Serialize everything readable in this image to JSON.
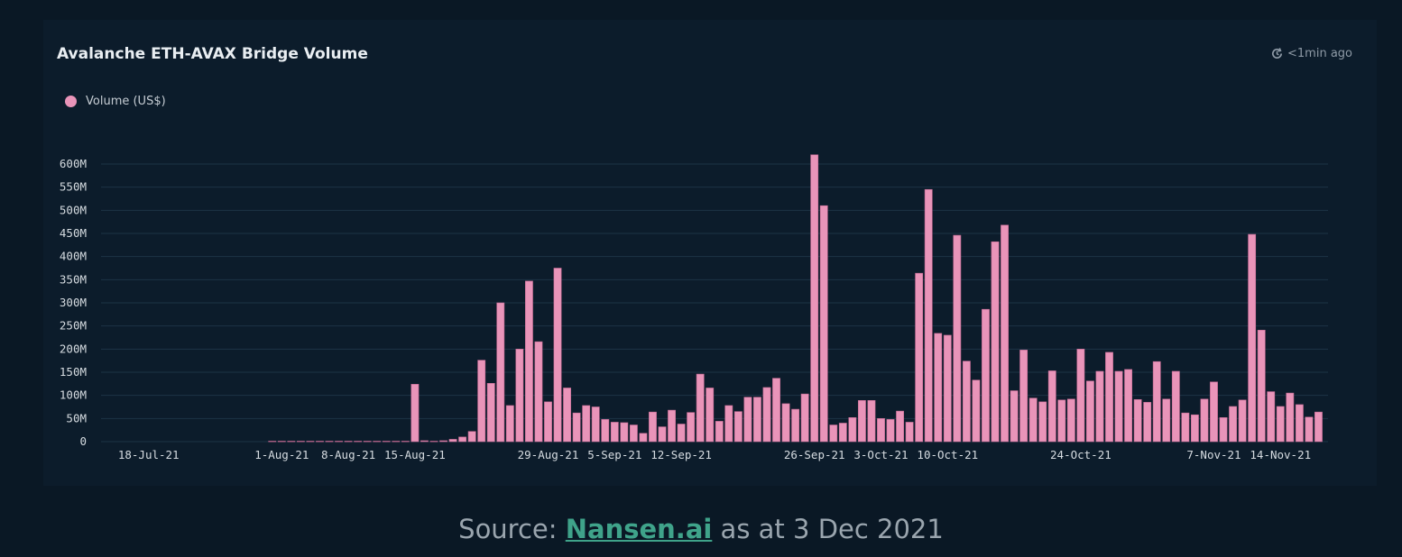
{
  "header": {
    "title": "Avalanche ETH-AVAX Bridge Volume",
    "refresh_text": "<1min ago"
  },
  "legend": {
    "label": "Volume (US$)"
  },
  "source": {
    "prefix": "Source: ",
    "link_text": "Nansen.ai",
    "suffix": " as at 3 Dec 2021"
  },
  "colors": {
    "bar": "#e994b9",
    "grid": "#1d3346",
    "axis_text": "#d6dce1"
  },
  "chart_data": {
    "type": "bar",
    "title": "Avalanche ETH-AVAX Bridge Volume",
    "xlabel": "",
    "ylabel": "",
    "series": [
      {
        "name": "Volume (US$)"
      }
    ],
    "ylim": [
      0,
      600000000
    ],
    "yticks": [
      {
        "value": 0,
        "label": "0"
      },
      {
        "value": 50000000,
        "label": "50M"
      },
      {
        "value": 100000000,
        "label": "100M"
      },
      {
        "value": 150000000,
        "label": "150M"
      },
      {
        "value": 200000000,
        "label": "200M"
      },
      {
        "value": 250000000,
        "label": "250M"
      },
      {
        "value": 300000000,
        "label": "300M"
      },
      {
        "value": 350000000,
        "label": "350M"
      },
      {
        "value": 400000000,
        "label": "400M"
      },
      {
        "value": 450000000,
        "label": "450M"
      },
      {
        "value": 500000000,
        "label": "500M"
      },
      {
        "value": 550000000,
        "label": "550M"
      },
      {
        "value": 600000000,
        "label": "600M"
      }
    ],
    "xticks": [
      {
        "date": "2021-07-18",
        "label": "18-Jul-21"
      },
      {
        "date": "2021-08-01",
        "label": "1-Aug-21"
      },
      {
        "date": "2021-08-08",
        "label": "8-Aug-21"
      },
      {
        "date": "2021-08-15",
        "label": "15-Aug-21"
      },
      {
        "date": "2021-08-29",
        "label": "29-Aug-21"
      },
      {
        "date": "2021-09-05",
        "label": "5-Sep-21"
      },
      {
        "date": "2021-09-12",
        "label": "12-Sep-21"
      },
      {
        "date": "2021-09-26",
        "label": "26-Sep-21"
      },
      {
        "date": "2021-10-03",
        "label": "3-Oct-21"
      },
      {
        "date": "2021-10-10",
        "label": "10-Oct-21"
      },
      {
        "date": "2021-10-24",
        "label": "24-Oct-21"
      },
      {
        "date": "2021-11-07",
        "label": "7-Nov-21"
      },
      {
        "date": "2021-11-14",
        "label": "14-Nov-21"
      }
    ],
    "x": [
      "2021-07-31",
      "2021-08-01",
      "2021-08-02",
      "2021-08-03",
      "2021-08-04",
      "2021-08-05",
      "2021-08-06",
      "2021-08-07",
      "2021-08-08",
      "2021-08-09",
      "2021-08-10",
      "2021-08-11",
      "2021-08-12",
      "2021-08-13",
      "2021-08-14",
      "2021-08-15",
      "2021-08-16",
      "2021-08-17",
      "2021-08-18",
      "2021-08-19",
      "2021-08-20",
      "2021-08-21",
      "2021-08-22",
      "2021-08-23",
      "2021-08-24",
      "2021-08-25",
      "2021-08-26",
      "2021-08-27",
      "2021-08-28",
      "2021-08-29",
      "2021-08-30",
      "2021-08-31",
      "2021-09-01",
      "2021-09-02",
      "2021-09-03",
      "2021-09-04",
      "2021-09-05",
      "2021-09-06",
      "2021-09-07",
      "2021-09-08",
      "2021-09-09",
      "2021-09-10",
      "2021-09-11",
      "2021-09-12",
      "2021-09-13",
      "2021-09-14",
      "2021-09-15",
      "2021-09-16",
      "2021-09-17",
      "2021-09-18",
      "2021-09-19",
      "2021-09-20",
      "2021-09-21",
      "2021-09-22",
      "2021-09-23",
      "2021-09-24",
      "2021-09-25",
      "2021-09-26",
      "2021-09-27",
      "2021-09-28",
      "2021-09-29",
      "2021-09-30",
      "2021-10-01",
      "2021-10-02",
      "2021-10-03",
      "2021-10-04",
      "2021-10-05",
      "2021-10-06",
      "2021-10-07",
      "2021-10-08",
      "2021-10-09",
      "2021-10-10",
      "2021-10-11",
      "2021-10-12",
      "2021-10-13",
      "2021-10-14",
      "2021-10-15",
      "2021-10-16",
      "2021-10-17",
      "2021-10-18",
      "2021-10-19",
      "2021-10-20",
      "2021-10-21",
      "2021-10-22",
      "2021-10-23",
      "2021-10-24",
      "2021-10-25",
      "2021-10-26",
      "2021-10-27",
      "2021-10-28",
      "2021-10-29",
      "2021-10-30",
      "2021-10-31",
      "2021-11-01",
      "2021-11-02",
      "2021-11-03",
      "2021-11-04",
      "2021-11-05",
      "2021-11-06",
      "2021-11-07",
      "2021-11-08",
      "2021-11-09",
      "2021-11-10",
      "2021-11-11",
      "2021-11-12",
      "2021-11-13",
      "2021-11-14",
      "2021-11-15",
      "2021-11-16",
      "2021-11-17",
      "2021-11-18"
    ],
    "values": [
      1000000,
      1000000,
      1000000,
      1000000,
      1000000,
      1000000,
      1000000,
      1000000,
      1000000,
      1000000,
      1000000,
      1000000,
      1000000,
      1000000,
      1000000,
      124000000,
      2000000,
      1000000,
      2000000,
      5000000,
      10000000,
      22000000,
      176000000,
      126000000,
      300000000,
      78000000,
      200000000,
      347000000,
      216000000,
      86000000,
      375000000,
      116000000,
      62000000,
      78000000,
      75000000,
      48000000,
      42000000,
      41000000,
      36000000,
      18000000,
      64000000,
      32000000,
      68000000,
      38000000,
      63000000,
      146000000,
      116000000,
      44000000,
      78000000,
      65000000,
      96000000,
      96000000,
      117000000,
      137000000,
      82000000,
      70000000,
      103000000,
      620000000,
      510000000,
      36000000,
      40000000,
      52000000,
      89000000,
      89000000,
      50000000,
      48000000,
      66000000,
      42000000,
      364000000,
      545000000,
      234000000,
      230000000,
      446000000,
      174000000,
      133000000,
      286000000,
      432000000,
      468000000,
      110000000,
      198000000,
      94000000,
      86000000,
      153000000,
      90000000,
      92000000,
      200000000,
      131000000,
      152000000,
      193000000,
      152000000,
      156000000,
      91000000,
      85000000,
      173000000,
      92000000,
      152000000,
      62000000,
      58000000,
      92000000,
      129000000,
      52000000,
      76000000,
      90000000,
      448000000,
      241000000,
      108000000,
      76000000,
      105000000,
      80000000,
      53000000,
      64000000
    ]
  }
}
